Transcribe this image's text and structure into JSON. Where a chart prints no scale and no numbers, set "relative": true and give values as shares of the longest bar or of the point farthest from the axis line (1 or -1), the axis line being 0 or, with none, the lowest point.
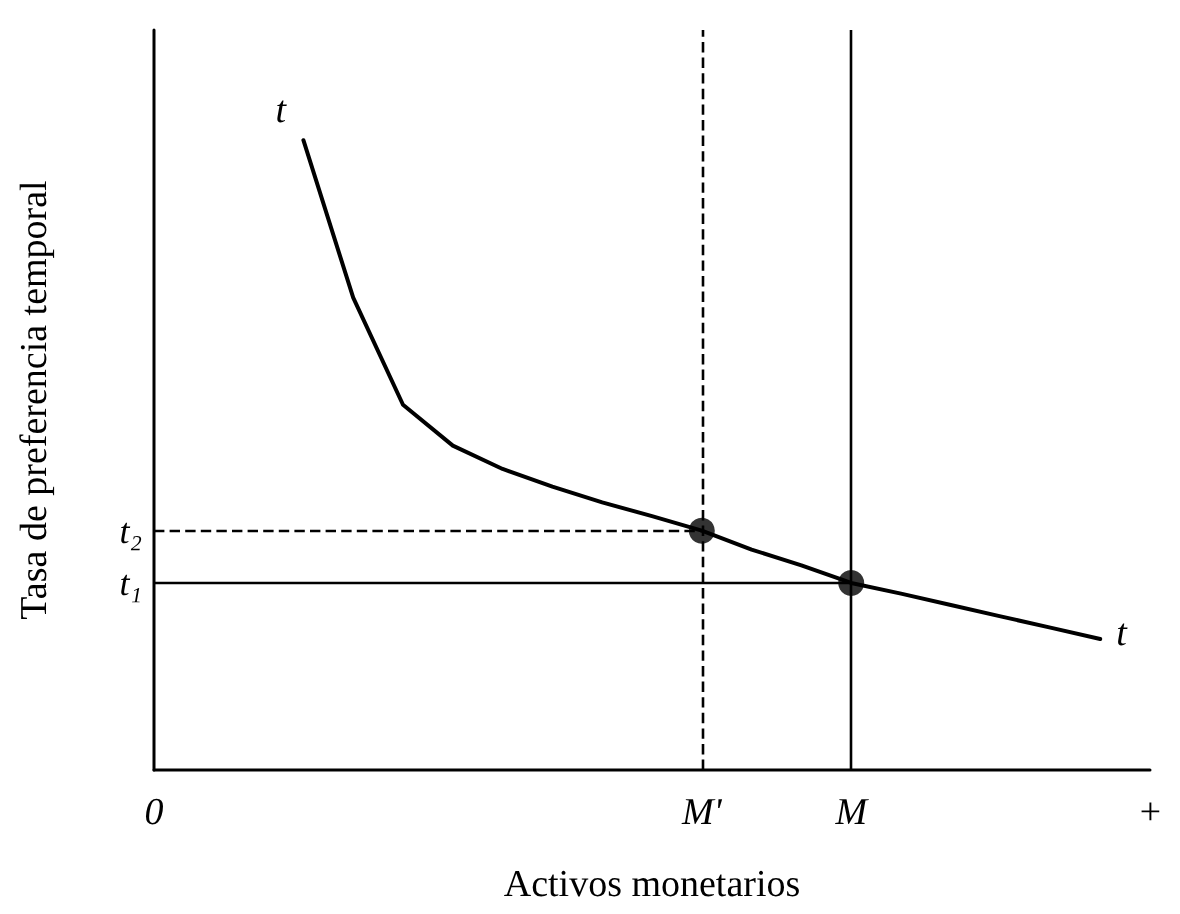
{
  "chart_data": {
    "type": "line",
    "relative": true,
    "xlabel": "Activos monetarios",
    "ylabel": "Tasa de preferencia temporal",
    "categories": [
      "0",
      null,
      null,
      null,
      null,
      null,
      null,
      null,
      null,
      null,
      null,
      "M'",
      null,
      null,
      "M",
      null,
      null,
      null,
      null,
      null,
      "+"
    ],
    "series": [
      {
        "color": "#000000",
        "values": [
          null,
          null,
          null,
          1.0,
          0.75,
          0.58,
          0.515,
          0.478,
          0.45,
          0.425,
          0.403,
          0.38,
          0.35,
          0.325,
          0.297,
          0.28,
          0.262,
          0.244,
          0.226,
          0.208,
          null
        ]
      },
      {
        "type": "scatter",
        "marker": "circle",
        "color": "#000000",
        "x": [
          "M'",
          "M"
        ],
        "values": [
          0.38,
          0.297
        ]
      }
    ],
    "ref_lines": [
      {
        "axis": "x",
        "value": "M'",
        "line_style": "dashed",
        "color": "#000000"
      },
      {
        "axis": "x",
        "value": "M",
        "line_style": "solid",
        "color": "#000000"
      },
      {
        "axis": "y",
        "value": 0.38,
        "label": "t₂",
        "line_style": "dashed",
        "color": "#000000"
      },
      {
        "axis": "y",
        "value": 0.297,
        "label": "t₁",
        "line_style": "solid",
        "color": "#000000"
      }
    ],
    "annotations": [
      "t",
      "t"
    ],
    "marker": "none",
    "line_style": "solid",
    "grid": false
  }
}
